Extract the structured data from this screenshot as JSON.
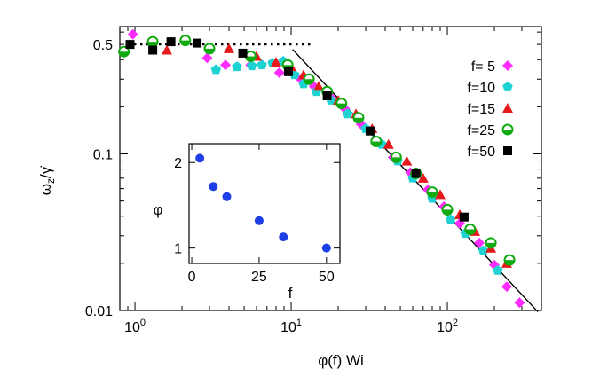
{
  "chart_data": {
    "type": "scatter",
    "xscale": "log",
    "yscale": "log",
    "xlabel": "φ(f) Wi",
    "ylabel_main": "ω",
    "ylabel_sub": "z",
    "ylabel_tail": "/γ̇",
    "xlim": [
      0.8,
      400
    ],
    "ylim": [
      0.01,
      0.65
    ],
    "x_ticks": [
      {
        "value": 1,
        "base": "10",
        "exp": "0"
      },
      {
        "value": 10,
        "base": "10",
        "exp": "1"
      },
      {
        "value": 100,
        "base": "10",
        "exp": "2"
      }
    ],
    "y_ticks": [
      {
        "value": 0.5,
        "label": "0.5"
      },
      {
        "value": 0.1,
        "label": "0.1"
      },
      {
        "value": 0.01,
        "label": "0.01"
      }
    ],
    "series": [
      {
        "name": "f= 5",
        "marker": "diamond",
        "color": "#ff2cff",
        "points": [
          [
            0.97,
            0.58
          ],
          [
            2.9,
            0.41
          ],
          [
            3.8,
            0.37
          ],
          [
            5.5,
            0.37
          ],
          [
            8.4,
            0.33
          ],
          [
            11.5,
            0.3
          ],
          [
            14,
            0.27
          ],
          [
            18,
            0.23
          ],
          [
            22,
            0.195
          ],
          [
            28,
            0.155
          ],
          [
            35,
            0.121
          ],
          [
            45,
            0.095
          ],
          [
            58,
            0.076
          ],
          [
            75,
            0.059
          ],
          [
            95,
            0.046
          ],
          [
            120,
            0.036
          ],
          [
            160,
            0.027
          ],
          [
            200,
            0.0195
          ],
          [
            240,
            0.0142
          ],
          [
            290,
            0.0112
          ]
        ]
      },
      {
        "name": "f=10",
        "marker": "pentagon",
        "color": "#1ed2d2",
        "points": [
          [
            3.3,
            0.345
          ],
          [
            4.5,
            0.36
          ],
          [
            5.6,
            0.365
          ],
          [
            6.5,
            0.37
          ],
          [
            7.6,
            0.38
          ],
          [
            8.9,
            0.39
          ],
          [
            10.5,
            0.32
          ],
          [
            12,
            0.28
          ],
          [
            14.5,
            0.25
          ],
          [
            18,
            0.22
          ],
          [
            23,
            0.18
          ],
          [
            30,
            0.145
          ],
          [
            38,
            0.115
          ],
          [
            48,
            0.09
          ],
          [
            60,
            0.07
          ],
          [
            80,
            0.052
          ],
          [
            105,
            0.038
          ],
          [
            130,
            0.031
          ],
          [
            170,
            0.024
          ],
          [
            210,
            0.018
          ]
        ]
      },
      {
        "name": "f=15",
        "marker": "triangle",
        "color": "#e41a1c",
        "points": [
          [
            1.6,
            0.46
          ],
          [
            4,
            0.47
          ],
          [
            6,
            0.42
          ],
          [
            8,
            0.385
          ],
          [
            10,
            0.36
          ],
          [
            12,
            0.32
          ],
          [
            15,
            0.27
          ],
          [
            20,
            0.22
          ],
          [
            26,
            0.18
          ],
          [
            33,
            0.145
          ],
          [
            42,
            0.115
          ],
          [
            55,
            0.09
          ],
          [
            70,
            0.07
          ],
          [
            90,
            0.055
          ],
          [
            120,
            0.041
          ],
          [
            150,
            0.032
          ],
          [
            190,
            0.025
          ],
          [
            240,
            0.02
          ]
        ]
      },
      {
        "name": "f=25",
        "marker": "circle-half",
        "color": "#11aa11",
        "points": [
          [
            0.85,
            0.45
          ],
          [
            1.3,
            0.52
          ],
          [
            2.1,
            0.53
          ],
          [
            3,
            0.47
          ],
          [
            5.5,
            0.42
          ],
          [
            9.5,
            0.37
          ],
          [
            13,
            0.3
          ],
          [
            17,
            0.25
          ],
          [
            21,
            0.21
          ],
          [
            27,
            0.17
          ],
          [
            35,
            0.12
          ],
          [
            47,
            0.095
          ],
          [
            63,
            0.075
          ],
          [
            80,
            0.057
          ],
          [
            100,
            0.044
          ],
          [
            140,
            0.033
          ],
          [
            190,
            0.027
          ],
          [
            250,
            0.021
          ]
        ]
      },
      {
        "name": "f=50",
        "marker": "square",
        "color": "#000000",
        "points": [
          [
            0.93,
            0.5
          ],
          [
            1.3,
            0.46
          ],
          [
            1.7,
            0.52
          ],
          [
            2.5,
            0.51
          ],
          [
            4.9,
            0.44
          ],
          [
            9.6,
            0.335
          ],
          [
            17,
            0.235
          ],
          [
            32,
            0.14
          ],
          [
            63,
            0.075
          ],
          [
            128,
            0.0395
          ]
        ]
      }
    ],
    "ref_dotted": {
      "x": [
        0.9,
        14
      ],
      "y": 0.5
    },
    "ref_line": {
      "x": [
        10.2,
        380
      ],
      "y": [
        0.465,
        0.0098
      ]
    },
    "inset": {
      "type": "scatter",
      "xlabel": "f",
      "ylabel": "φ",
      "xlim": [
        -1,
        55
      ],
      "ylim": [
        0.82,
        2.22
      ],
      "x_ticks": [
        {
          "value": 0,
          "label": "0"
        },
        {
          "value": 25,
          "label": "25"
        },
        {
          "value": 50,
          "label": "50"
        }
      ],
      "y_ticks": [
        {
          "value": 1,
          "label": "1"
        },
        {
          "value": 2,
          "label": "2"
        }
      ],
      "color": "#1f3fe6",
      "x": [
        3,
        8,
        13,
        25,
        34,
        50
      ],
      "y": [
        2.05,
        1.72,
        1.6,
        1.32,
        1.13,
        1.0
      ]
    }
  }
}
